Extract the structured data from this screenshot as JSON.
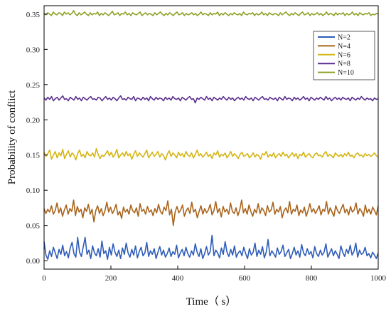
{
  "chart_data": {
    "type": "line",
    "title": "",
    "xlabel": "Time（ s）",
    "ylabel": "Probability of conflict",
    "xlim": [
      0,
      1000
    ],
    "ylim": [
      -0.012,
      0.362
    ],
    "xticks": [
      0,
      200,
      400,
      600,
      800,
      1000
    ],
    "xtick_labels": [
      "0",
      "200",
      "400",
      "600",
      "800",
      "1000"
    ],
    "yticks": [
      0.0,
      0.05,
      0.1,
      0.15,
      0.2,
      0.25,
      0.3,
      0.35
    ],
    "ytick_labels": [
      "0.00",
      "0.05",
      "0.10",
      "0.15",
      "0.20",
      "0.25",
      "0.30",
      "0.35"
    ],
    "grid": false,
    "legend_position": "top-right",
    "series": [
      {
        "name": "N=2",
        "color": "#2e5cb8",
        "values": [
          0.027,
          0.008,
          0.002,
          0.014,
          0.006,
          0.019,
          0.011,
          0.003,
          0.016,
          0.009,
          0.022,
          0.007,
          0.013,
          0.004,
          0.018,
          0.026,
          0.01,
          0.005,
          0.033,
          0.012,
          0.006,
          0.02,
          0.033,
          0.009,
          0.015,
          0.003,
          0.021,
          0.011,
          0.007,
          0.017,
          0.005,
          0.028,
          0.01,
          0.014,
          0.002,
          0.019,
          0.008,
          0.024,
          0.012,
          0.006,
          0.015,
          0.003,
          0.018,
          0.009,
          0.025,
          0.011,
          0.005,
          0.016,
          0.008,
          0.021,
          0.004,
          0.013,
          0.019,
          0.007,
          0.011,
          0.026,
          0.006,
          0.014,
          0.009,
          0.017,
          0.003,
          0.012,
          0.02,
          0.008,
          0.015,
          0.005,
          0.01,
          0.018,
          0.006,
          0.013,
          0.009,
          0.022,
          0.004,
          0.011,
          0.016,
          0.007,
          0.019,
          0.01,
          0.005,
          0.014,
          0.008,
          0.024,
          0.012,
          0.006,
          0.017,
          0.003,
          0.01,
          0.02,
          0.008,
          0.013,
          0.036,
          0.007,
          0.015,
          0.011,
          0.004,
          0.018,
          0.009,
          0.027,
          0.012,
          0.006,
          0.016,
          0.008,
          0.021,
          0.005,
          0.011,
          0.014,
          0.007,
          0.019,
          0.01,
          0.003,
          0.017,
          0.008,
          0.012,
          0.025,
          0.006,
          0.015,
          0.009,
          0.02,
          0.004,
          0.012,
          0.03,
          0.007,
          0.014,
          0.01,
          0.005,
          0.018,
          0.009,
          0.013,
          0.022,
          0.006,
          0.011,
          0.016,
          0.003,
          0.01,
          0.019,
          0.008,
          0.014,
          0.005,
          0.023,
          0.011,
          0.007,
          0.017,
          0.009,
          0.013,
          0.004,
          0.02,
          0.01,
          0.006,
          0.015,
          0.008,
          0.012,
          0.024,
          0.005,
          0.011,
          0.017,
          0.007,
          0.014,
          0.009,
          0.003,
          0.021,
          0.012,
          0.006,
          0.016,
          0.01,
          0.022,
          0.008,
          0.013,
          0.025,
          0.005,
          0.015,
          0.009,
          0.011,
          0.019,
          0.007,
          0.01,
          0.004,
          0.012,
          0.008,
          0.003,
          0.011
        ]
      },
      {
        "name": "N=4",
        "color": "#a8641c",
        "values": [
          0.074,
          0.067,
          0.073,
          0.069,
          0.078,
          0.066,
          0.071,
          0.082,
          0.068,
          0.075,
          0.063,
          0.072,
          0.079,
          0.066,
          0.074,
          0.07,
          0.086,
          0.064,
          0.077,
          0.069,
          0.073,
          0.061,
          0.075,
          0.07,
          0.08,
          0.066,
          0.073,
          0.055,
          0.071,
          0.078,
          0.067,
          0.074,
          0.064,
          0.071,
          0.083,
          0.069,
          0.076,
          0.067,
          0.072,
          0.08,
          0.065,
          0.07,
          0.06,
          0.076,
          0.069,
          0.073,
          0.066,
          0.079,
          0.071,
          0.068,
          0.075,
          0.063,
          0.081,
          0.07,
          0.073,
          0.066,
          0.077,
          0.069,
          0.072,
          0.064,
          0.074,
          0.068,
          0.08,
          0.07,
          0.066,
          0.076,
          0.071,
          0.085,
          0.065,
          0.073,
          0.05,
          0.069,
          0.077,
          0.068,
          0.072,
          0.079,
          0.063,
          0.071,
          0.075,
          0.067,
          0.083,
          0.069,
          0.073,
          0.061,
          0.07,
          0.078,
          0.066,
          0.074,
          0.068,
          0.072,
          0.08,
          0.065,
          0.071,
          0.084,
          0.068,
          0.074,
          0.062,
          0.077,
          0.069,
          0.073,
          0.066,
          0.082,
          0.07,
          0.067,
          0.075,
          0.064,
          0.072,
          0.086,
          0.068,
          0.074,
          0.066,
          0.079,
          0.07,
          0.063,
          0.073,
          0.068,
          0.081,
          0.067,
          0.075,
          0.071,
          0.064,
          0.078,
          0.069,
          0.072,
          0.083,
          0.066,
          0.073,
          0.069,
          0.077,
          0.061,
          0.071,
          0.075,
          0.068,
          0.084,
          0.066,
          0.073,
          0.07,
          0.079,
          0.064,
          0.072,
          0.068,
          0.076,
          0.063,
          0.071,
          0.081,
          0.069,
          0.074,
          0.067,
          0.072,
          0.078,
          0.065,
          0.073,
          0.07,
          0.084,
          0.066,
          0.075,
          0.069,
          0.063,
          0.078,
          0.071,
          0.067,
          0.074,
          0.08,
          0.068,
          0.073,
          0.065,
          0.077,
          0.069,
          0.072,
          0.082,
          0.066,
          0.074,
          0.07,
          0.063,
          0.079,
          0.068,
          0.073,
          0.066,
          0.076,
          0.071,
          0.065,
          0.078
        ]
      },
      {
        "name": "N=6",
        "color": "#d4b514",
        "values": [
          0.154,
          0.148,
          0.152,
          0.157,
          0.144,
          0.15,
          0.155,
          0.146,
          0.153,
          0.149,
          0.158,
          0.145,
          0.151,
          0.156,
          0.147,
          0.153,
          0.15,
          0.143,
          0.152,
          0.157,
          0.148,
          0.151,
          0.146,
          0.155,
          0.15,
          0.149,
          0.153,
          0.147,
          0.159,
          0.151,
          0.145,
          0.15,
          0.148,
          0.152,
          0.156,
          0.149,
          0.154,
          0.147,
          0.151,
          0.158,
          0.146,
          0.15,
          0.153,
          0.148,
          0.155,
          0.149,
          0.152,
          0.144,
          0.151,
          0.156,
          0.148,
          0.153,
          0.15,
          0.147,
          0.152,
          0.157,
          0.146,
          0.15,
          0.154,
          0.148,
          0.151,
          0.155,
          0.147,
          0.152,
          0.149,
          0.143,
          0.151,
          0.156,
          0.148,
          0.153,
          0.15,
          0.146,
          0.154,
          0.149,
          0.152,
          0.147,
          0.155,
          0.15,
          0.148,
          0.153,
          0.146,
          0.151,
          0.157,
          0.149,
          0.152,
          0.147,
          0.15,
          0.154,
          0.148,
          0.151,
          0.145,
          0.153,
          0.15,
          0.156,
          0.147,
          0.151,
          0.149,
          0.153,
          0.146,
          0.15,
          0.155,
          0.148,
          0.152,
          0.149,
          0.145,
          0.151,
          0.154,
          0.148,
          0.15,
          0.152,
          0.146,
          0.149,
          0.153,
          0.147,
          0.151,
          0.149,
          0.144,
          0.152,
          0.15,
          0.155,
          0.147,
          0.151,
          0.148,
          0.153,
          0.146,
          0.15,
          0.152,
          0.148,
          0.154,
          0.149,
          0.151,
          0.146,
          0.15,
          0.153,
          0.148,
          0.152,
          0.145,
          0.151,
          0.149,
          0.154,
          0.147,
          0.15,
          0.152,
          0.148,
          0.146,
          0.151,
          0.153,
          0.149,
          0.15,
          0.147,
          0.152,
          0.155,
          0.148,
          0.151,
          0.149,
          0.146,
          0.153,
          0.15,
          0.148,
          0.151,
          0.147,
          0.152,
          0.149,
          0.154,
          0.148,
          0.15,
          0.146,
          0.151,
          0.153,
          0.149,
          0.15,
          0.147,
          0.152,
          0.149,
          0.151,
          0.148,
          0.15,
          0.153,
          0.149,
          0.147
        ]
      },
      {
        "name": "N=8",
        "color": "#5b2e8f",
        "values": [
          0.231,
          0.228,
          0.232,
          0.229,
          0.233,
          0.227,
          0.23,
          0.232,
          0.228,
          0.231,
          0.234,
          0.229,
          0.23,
          0.227,
          0.232,
          0.23,
          0.228,
          0.233,
          0.229,
          0.231,
          0.227,
          0.232,
          0.23,
          0.228,
          0.231,
          0.233,
          0.229,
          0.23,
          0.228,
          0.232,
          0.231,
          0.227,
          0.23,
          0.233,
          0.229,
          0.231,
          0.228,
          0.232,
          0.23,
          0.227,
          0.231,
          0.234,
          0.229,
          0.23,
          0.228,
          0.232,
          0.23,
          0.229,
          0.233,
          0.227,
          0.231,
          0.23,
          0.228,
          0.232,
          0.229,
          0.231,
          0.227,
          0.233,
          0.23,
          0.228,
          0.232,
          0.229,
          0.231,
          0.23,
          0.227,
          0.232,
          0.229,
          0.231,
          0.228,
          0.233,
          0.23,
          0.229,
          0.231,
          0.227,
          0.232,
          0.23,
          0.228,
          0.231,
          0.233,
          0.229,
          0.23,
          0.224,
          0.231,
          0.229,
          0.232,
          0.23,
          0.228,
          0.233,
          0.229,
          0.231,
          0.227,
          0.232,
          0.23,
          0.228,
          0.231,
          0.229,
          0.233,
          0.23,
          0.228,
          0.232,
          0.229,
          0.231,
          0.227,
          0.23,
          0.232,
          0.229,
          0.231,
          0.228,
          0.233,
          0.23,
          0.229,
          0.231,
          0.227,
          0.232,
          0.23,
          0.228,
          0.231,
          0.233,
          0.229,
          0.23,
          0.228,
          0.232,
          0.23,
          0.229,
          0.231,
          0.227,
          0.232,
          0.23,
          0.228,
          0.233,
          0.229,
          0.231,
          0.23,
          0.227,
          0.232,
          0.229,
          0.231,
          0.228,
          0.23,
          0.233,
          0.229,
          0.231,
          0.227,
          0.232,
          0.23,
          0.228,
          0.231,
          0.229,
          0.232,
          0.23,
          0.228,
          0.233,
          0.229,
          0.231,
          0.227,
          0.23,
          0.232,
          0.229,
          0.231,
          0.228,
          0.232,
          0.23,
          0.229,
          0.231,
          0.227,
          0.232,
          0.23,
          0.228,
          0.231,
          0.229,
          0.233,
          0.23,
          0.228,
          0.231,
          0.229,
          0.23,
          0.227,
          0.231,
          0.229,
          0.23
        ]
      },
      {
        "name": "N=10",
        "color": "#8ca024",
        "values": [
          0.351,
          0.349,
          0.352,
          0.35,
          0.348,
          0.353,
          0.35,
          0.349,
          0.352,
          0.351,
          0.348,
          0.353,
          0.35,
          0.352,
          0.349,
          0.351,
          0.355,
          0.35,
          0.348,
          0.352,
          0.349,
          0.351,
          0.353,
          0.35,
          0.348,
          0.352,
          0.349,
          0.351,
          0.35,
          0.353,
          0.348,
          0.351,
          0.349,
          0.352,
          0.35,
          0.348,
          0.351,
          0.354,
          0.349,
          0.35,
          0.352,
          0.348,
          0.351,
          0.35,
          0.353,
          0.349,
          0.351,
          0.348,
          0.352,
          0.35,
          0.349,
          0.351,
          0.353,
          0.348,
          0.35,
          0.352,
          0.349,
          0.351,
          0.35,
          0.348,
          0.352,
          0.349,
          0.351,
          0.353,
          0.35,
          0.348,
          0.351,
          0.349,
          0.352,
          0.35,
          0.348,
          0.351,
          0.353,
          0.349,
          0.35,
          0.352,
          0.348,
          0.351,
          0.349,
          0.35,
          0.352,
          0.349,
          0.351,
          0.348,
          0.35,
          0.353,
          0.349,
          0.351,
          0.35,
          0.348,
          0.352,
          0.349,
          0.351,
          0.35,
          0.353,
          0.348,
          0.351,
          0.349,
          0.352,
          0.35,
          0.348,
          0.351,
          0.349,
          0.352,
          0.35,
          0.349,
          0.351,
          0.348,
          0.353,
          0.35,
          0.349,
          0.351,
          0.35,
          0.352,
          0.348,
          0.351,
          0.349,
          0.35,
          0.353,
          0.349,
          0.351,
          0.348,
          0.352,
          0.35,
          0.349,
          0.351,
          0.35,
          0.348,
          0.352,
          0.349,
          0.351,
          0.353,
          0.35,
          0.348,
          0.351,
          0.349,
          0.352,
          0.35,
          0.348,
          0.351,
          0.353,
          0.349,
          0.35,
          0.352,
          0.348,
          0.351,
          0.349,
          0.35,
          0.352,
          0.349,
          0.351,
          0.348,
          0.35,
          0.353,
          0.349,
          0.351,
          0.35,
          0.348,
          0.352,
          0.349,
          0.351,
          0.35,
          0.352,
          0.348,
          0.351,
          0.349,
          0.35,
          0.353,
          0.349,
          0.351,
          0.348,
          0.352,
          0.35,
          0.349,
          0.351,
          0.35,
          0.352,
          0.348,
          0.35,
          0.349,
          0.351,
          0.35
        ]
      }
    ]
  }
}
